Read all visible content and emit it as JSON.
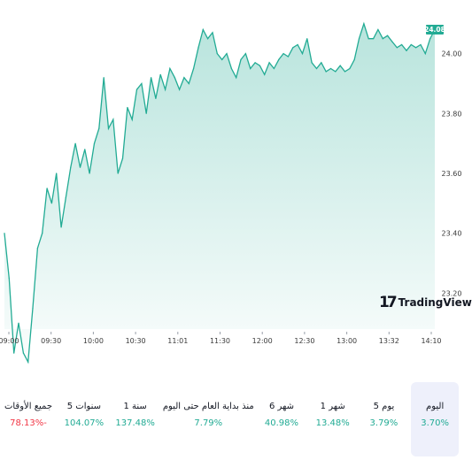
{
  "chart_data": {
    "type": "area",
    "x_ticks": [
      "09:00",
      "09:30",
      "10:00",
      "10:30",
      "11:01",
      "11:30",
      "12:00",
      "12:30",
      "13:00",
      "13:32",
      "14:10"
    ],
    "y_ticks": [
      "23.20",
      "23.40",
      "23.60",
      "23.80",
      "24.00"
    ],
    "ylim": [
      23.08,
      24.12
    ],
    "last_price": "24.08",
    "series": [
      {
        "points": [
          [
            0,
            23.4
          ],
          [
            2,
            23.25
          ],
          [
            4,
            23.0
          ],
          [
            6,
            23.1
          ],
          [
            8,
            23.0
          ],
          [
            10,
            22.97
          ],
          [
            12,
            23.15
          ],
          [
            14,
            23.35
          ],
          [
            16,
            23.4
          ],
          [
            18,
            23.55
          ],
          [
            20,
            23.5
          ],
          [
            22,
            23.6
          ],
          [
            24,
            23.42
          ],
          [
            26,
            23.52
          ],
          [
            28,
            23.62
          ],
          [
            30,
            23.7
          ],
          [
            32,
            23.62
          ],
          [
            34,
            23.68
          ],
          [
            36,
            23.6
          ],
          [
            38,
            23.7
          ],
          [
            40,
            23.75
          ],
          [
            42,
            23.92
          ],
          [
            44,
            23.75
          ],
          [
            46,
            23.78
          ],
          [
            48,
            23.6
          ],
          [
            50,
            23.65
          ],
          [
            52,
            23.82
          ],
          [
            54,
            23.78
          ],
          [
            56,
            23.88
          ],
          [
            58,
            23.9
          ],
          [
            60,
            23.8
          ],
          [
            62,
            23.92
          ],
          [
            64,
            23.85
          ],
          [
            66,
            23.93
          ],
          [
            68,
            23.88
          ],
          [
            70,
            23.95
          ],
          [
            72,
            23.92
          ],
          [
            74,
            23.88
          ],
          [
            76,
            23.92
          ],
          [
            78,
            23.9
          ],
          [
            80,
            23.95
          ],
          [
            82,
            24.02
          ],
          [
            84,
            24.08
          ],
          [
            86,
            24.05
          ],
          [
            88,
            24.07
          ],
          [
            90,
            24.0
          ],
          [
            92,
            23.98
          ],
          [
            94,
            24.0
          ],
          [
            96,
            23.95
          ],
          [
            98,
            23.92
          ],
          [
            100,
            23.98
          ],
          [
            102,
            24.0
          ],
          [
            104,
            23.95
          ],
          [
            106,
            23.97
          ],
          [
            108,
            23.96
          ],
          [
            110,
            23.93
          ],
          [
            112,
            23.97
          ],
          [
            114,
            23.95
          ],
          [
            116,
            23.98
          ],
          [
            118,
            24.0
          ],
          [
            120,
            23.99
          ],
          [
            122,
            24.02
          ],
          [
            124,
            24.03
          ],
          [
            126,
            24.0
          ],
          [
            128,
            24.05
          ],
          [
            130,
            23.97
          ],
          [
            132,
            23.95
          ],
          [
            134,
            23.97
          ],
          [
            136,
            23.94
          ],
          [
            138,
            23.95
          ],
          [
            140,
            23.94
          ],
          [
            142,
            23.96
          ],
          [
            144,
            23.94
          ],
          [
            146,
            23.95
          ],
          [
            148,
            23.98
          ],
          [
            150,
            24.05
          ],
          [
            152,
            24.1
          ],
          [
            154,
            24.05
          ],
          [
            156,
            24.05
          ],
          [
            158,
            24.08
          ],
          [
            160,
            24.05
          ],
          [
            162,
            24.06
          ],
          [
            164,
            24.04
          ],
          [
            166,
            24.02
          ],
          [
            168,
            24.03
          ],
          [
            170,
            24.01
          ],
          [
            172,
            24.03
          ],
          [
            174,
            24.02
          ],
          [
            176,
            24.03
          ],
          [
            178,
            24.0
          ],
          [
            180,
            24.05
          ],
          [
            182,
            24.08
          ]
        ]
      }
    ],
    "colors": {
      "line": "#22ab94",
      "fill": "#22ab94",
      "tag": "#22ab94"
    }
  },
  "brand": {
    "logo": "TradingView",
    "mark": "17"
  },
  "periods": [
    {
      "label": "اليوم",
      "value": "3.70%",
      "trend": "pos",
      "active": true
    },
    {
      "label": "5 يوم",
      "value": "3.79%",
      "trend": "pos",
      "active": false
    },
    {
      "label": "1 شهر",
      "value": "13.48%",
      "trend": "pos",
      "active": false
    },
    {
      "label": "6 شهر",
      "value": "40.98%",
      "trend": "pos",
      "active": false
    },
    {
      "label": "منذ بداية العام حتى اليوم",
      "value": "7.79%",
      "trend": "pos",
      "active": false
    },
    {
      "label": "1 سنة",
      "value": "137.48%",
      "trend": "pos",
      "active": false
    },
    {
      "label": "5 سنوات",
      "value": "104.07%",
      "trend": "pos",
      "active": false
    },
    {
      "label": "جميع الأوقات",
      "value": "78.13%-",
      "trend": "neg",
      "active": false
    }
  ]
}
